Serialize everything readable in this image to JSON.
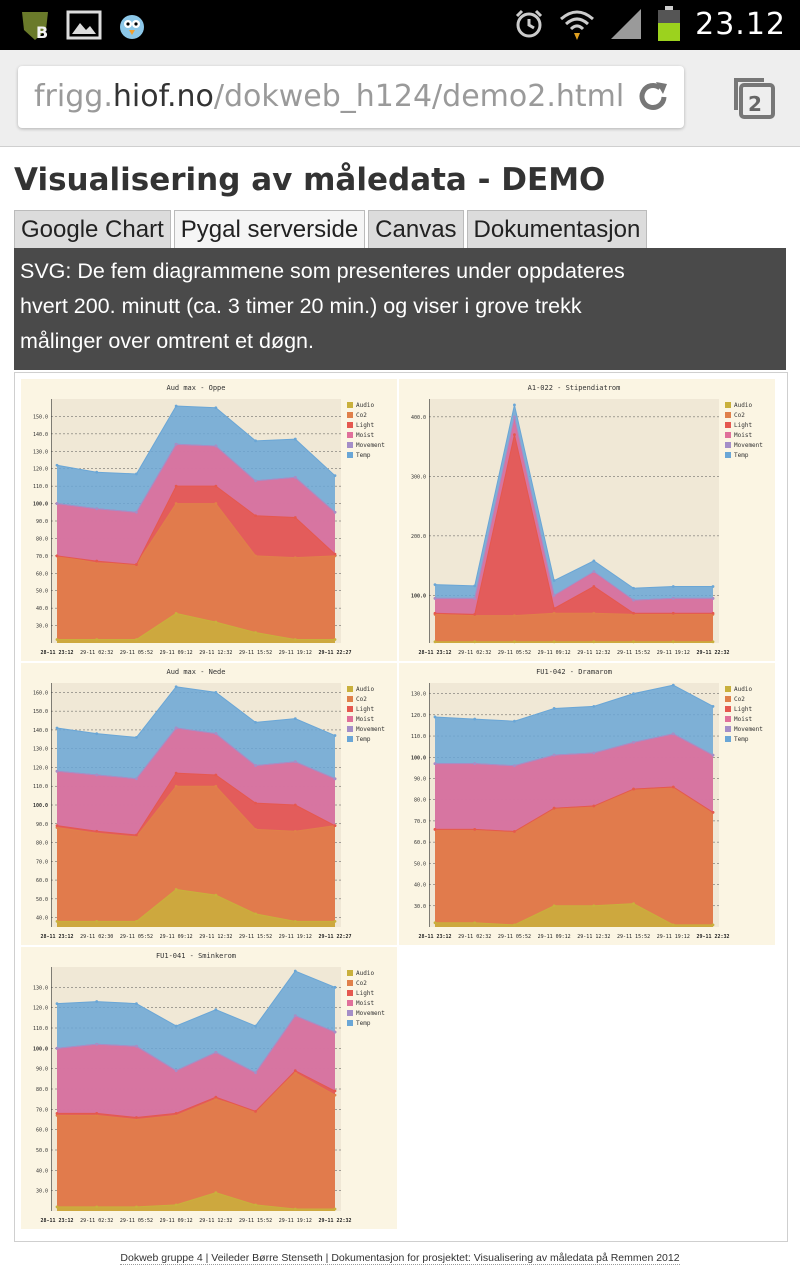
{
  "status_bar": {
    "time": "23.12",
    "icons": [
      "bird-badge-icon",
      "gallery-icon",
      "angry-bird-icon",
      "alarm-icon",
      "wifi-icon",
      "signal-icon",
      "battery-icon"
    ]
  },
  "browser": {
    "url_host_prefix": "frigg.",
    "url_host": "hiof.no",
    "url_path": "/dokweb_h124/demo2.html",
    "tabs_count": "2"
  },
  "page": {
    "title": "Visualisering av måledata - DEMO",
    "tabs": [
      {
        "label": "Google Chart",
        "active": false
      },
      {
        "label": "Pygal serverside",
        "active": true
      },
      {
        "label": "Canvas",
        "active": false
      },
      {
        "label": "Dokumentasjon",
        "active": false
      }
    ],
    "info_line1": "SVG: De fem diagrammene som presenteres under oppdateres",
    "info_line2": "hvert 200. minutt (ca. 3 timer 20 min.) og viser i grove trekk",
    "info_line3": "målinger over omtrent et døgn."
  },
  "footer": {
    "text": "Dokweb gruppe 4 | Veileder Børre Stenseth | Dokumentasjon for prosjektet: Visualisering av måledata på Remmen 2012"
  },
  "colors": {
    "Audio": "#c9b03c",
    "Co2": "#e0804a",
    "Light": "#e5584f",
    "Moist": "#e0709a",
    "Movement": "#a48ec8",
    "Temp": "#6aa6d6"
  },
  "chart_data": [
    {
      "type": "area",
      "title": "Aud max - Oppe",
      "x": [
        "28-11 23:12",
        "29-11 02:32",
        "29-11 05:52",
        "29-11 09:12",
        "29-11 12:32",
        "29-11 15:52",
        "29-11 19:12",
        "29-11 22:27"
      ],
      "ylim": [
        20,
        160
      ],
      "yticks": [
        "30.0",
        "40.0",
        "50.0",
        "60.0",
        "70.0",
        "80.0",
        "90.0",
        "100.0",
        "110.0",
        "120.0",
        "130.0",
        "140.0",
        "150.0"
      ],
      "legend": [
        "Audio",
        "Co2",
        "Light",
        "Moist",
        "Movement",
        "Temp"
      ],
      "series": [
        {
          "name": "Audio",
          "values": [
            22,
            22,
            22,
            37,
            32,
            26,
            22,
            22
          ]
        },
        {
          "name": "Co2",
          "values": [
            70,
            66,
            65,
            100,
            100,
            70,
            69,
            70
          ]
        },
        {
          "name": "Light",
          "values": [
            70,
            67,
            65,
            110,
            110,
            93,
            92,
            71
          ]
        },
        {
          "name": "Moist",
          "values": [
            100,
            97,
            95,
            134,
            133,
            113,
            115,
            95
          ]
        },
        {
          "name": "Movement",
          "values": [
            100,
            97,
            95,
            134,
            133,
            113,
            115,
            95
          ]
        },
        {
          "name": "Temp",
          "values": [
            122,
            118,
            117,
            156,
            155,
            136,
            137,
            116
          ]
        }
      ]
    },
    {
      "type": "area",
      "title": "A1-022 - Stipendiatrom",
      "x": [
        "28-11 23:12",
        "29-11 02:32",
        "29-11 05:52",
        "29-11 09:12",
        "29-11 12:32",
        "29-11 15:52",
        "29-11 19:12",
        "29-11 22:32"
      ],
      "ylim": [
        20,
        430
      ],
      "yticks": [
        "100.0",
        "200.0",
        "300.0",
        "400.0"
      ],
      "legend": [
        "Audio",
        "Co2",
        "Light",
        "Moist",
        "Movement",
        "Temp"
      ],
      "series": [
        {
          "name": "Audio",
          "values": [
            22,
            22,
            22,
            22,
            22,
            22,
            22,
            22
          ]
        },
        {
          "name": "Co2",
          "values": [
            68,
            66,
            66,
            70,
            70,
            68,
            68,
            68
          ]
        },
        {
          "name": "Light",
          "values": [
            70,
            68,
            370,
            78,
            115,
            70,
            70,
            70
          ]
        },
        {
          "name": "Moist",
          "values": [
            95,
            95,
            395,
            100,
            138,
            92,
            95,
            95
          ]
        },
        {
          "name": "Movement",
          "values": [
            95,
            95,
            400,
            100,
            140,
            92,
            95,
            95
          ]
        },
        {
          "name": "Temp",
          "values": [
            118,
            116,
            420,
            125,
            158,
            112,
            115,
            115
          ]
        }
      ]
    },
    {
      "type": "area",
      "title": "Aud max - Nede",
      "x": [
        "28-11 23:12",
        "29-11 02:30",
        "29-11 05:52",
        "29-11 09:12",
        "29-11 12:32",
        "29-11 15:52",
        "29-11 19:12",
        "29-11 22:27"
      ],
      "ylim": [
        35,
        165
      ],
      "yticks": [
        "40.0",
        "50.0",
        "60.0",
        "70.0",
        "80.0",
        "90.0",
        "100.0",
        "110.0",
        "120.0",
        "130.0",
        "140.0",
        "150.0",
        "160.0"
      ],
      "legend": [
        "Audio",
        "Co2",
        "Light",
        "Moist",
        "Movement",
        "Temp"
      ],
      "series": [
        {
          "name": "Audio",
          "values": [
            38,
            38,
            38,
            55,
            52,
            42,
            38,
            38
          ]
        },
        {
          "name": "Co2",
          "values": [
            88,
            85,
            83,
            110,
            110,
            87,
            86,
            89
          ]
        },
        {
          "name": "Light",
          "values": [
            89,
            86,
            84,
            117,
            116,
            101,
            100,
            89
          ]
        },
        {
          "name": "Moist",
          "values": [
            118,
            116,
            114,
            141,
            138,
            121,
            123,
            114
          ]
        },
        {
          "name": "Movement",
          "values": [
            118,
            116,
            114,
            141,
            138,
            121,
            123,
            114
          ]
        },
        {
          "name": "Temp",
          "values": [
            141,
            138,
            136,
            163,
            160,
            144,
            146,
            137
          ]
        }
      ]
    },
    {
      "type": "area",
      "title": "FU1-042 - Dramarom",
      "x": [
        "28-11 23:12",
        "29-11 02:32",
        "29-11 05:52",
        "29-11 09:12",
        "29-11 12:32",
        "29-11 15:52",
        "29-11 19:12",
        "29-11 22:32"
      ],
      "ylim": [
        20,
        135
      ],
      "yticks": [
        "30.0",
        "40.0",
        "50.0",
        "60.0",
        "70.0",
        "80.0",
        "90.0",
        "100.0",
        "110.0",
        "120.0",
        "130.0"
      ],
      "legend": [
        "Audio",
        "Co2",
        "Light",
        "Moist",
        "Movement",
        "Temp"
      ],
      "series": [
        {
          "name": "Audio",
          "values": [
            22,
            22,
            21,
            30,
            30,
            31,
            21,
            21
          ]
        },
        {
          "name": "Co2",
          "values": [
            66,
            66,
            65,
            76,
            77,
            85,
            86,
            74
          ]
        },
        {
          "name": "Light",
          "values": [
            66,
            66,
            65,
            76,
            77,
            85,
            86,
            74
          ]
        },
        {
          "name": "Moist",
          "values": [
            97,
            97,
            96,
            101,
            102,
            107,
            111,
            101
          ]
        },
        {
          "name": "Movement",
          "values": [
            97,
            97,
            96,
            101,
            102,
            107,
            111,
            101
          ]
        },
        {
          "name": "Temp",
          "values": [
            119,
            118,
            117,
            123,
            124,
            130,
            134,
            124
          ]
        }
      ]
    },
    {
      "type": "area",
      "title": "FU1-041 - Sminkerom",
      "x": [
        "28-11 23:12",
        "29-11 02:32",
        "29-11 05:52",
        "29-11 09:12",
        "29-11 12:32",
        "29-11 15:52",
        "29-11 19:12",
        "29-11 22:32"
      ],
      "ylim": [
        20,
        140
      ],
      "yticks": [
        "30.0",
        "40.0",
        "50.0",
        "60.0",
        "70.0",
        "80.0",
        "90.0",
        "100.0",
        "110.0",
        "120.0",
        "130.0"
      ],
      "legend": [
        "Audio",
        "Co2",
        "Light",
        "Moist",
        "Movement",
        "Temp"
      ],
      "series": [
        {
          "name": "Audio",
          "values": [
            22,
            22,
            22,
            23,
            29,
            23,
            21,
            21
          ]
        },
        {
          "name": "Co2",
          "values": [
            67,
            67,
            65,
            67,
            75,
            69,
            88,
            77
          ]
        },
        {
          "name": "Light",
          "values": [
            68,
            68,
            66,
            68,
            76,
            69,
            89,
            79
          ]
        },
        {
          "name": "Moist",
          "values": [
            100,
            102,
            101,
            89,
            98,
            88,
            116,
            108
          ]
        },
        {
          "name": "Movement",
          "values": [
            100,
            102,
            101,
            89,
            98,
            88,
            116,
            108
          ]
        },
        {
          "name": "Temp",
          "values": [
            122,
            123,
            122,
            111,
            119,
            111,
            138,
            130
          ]
        }
      ]
    }
  ]
}
